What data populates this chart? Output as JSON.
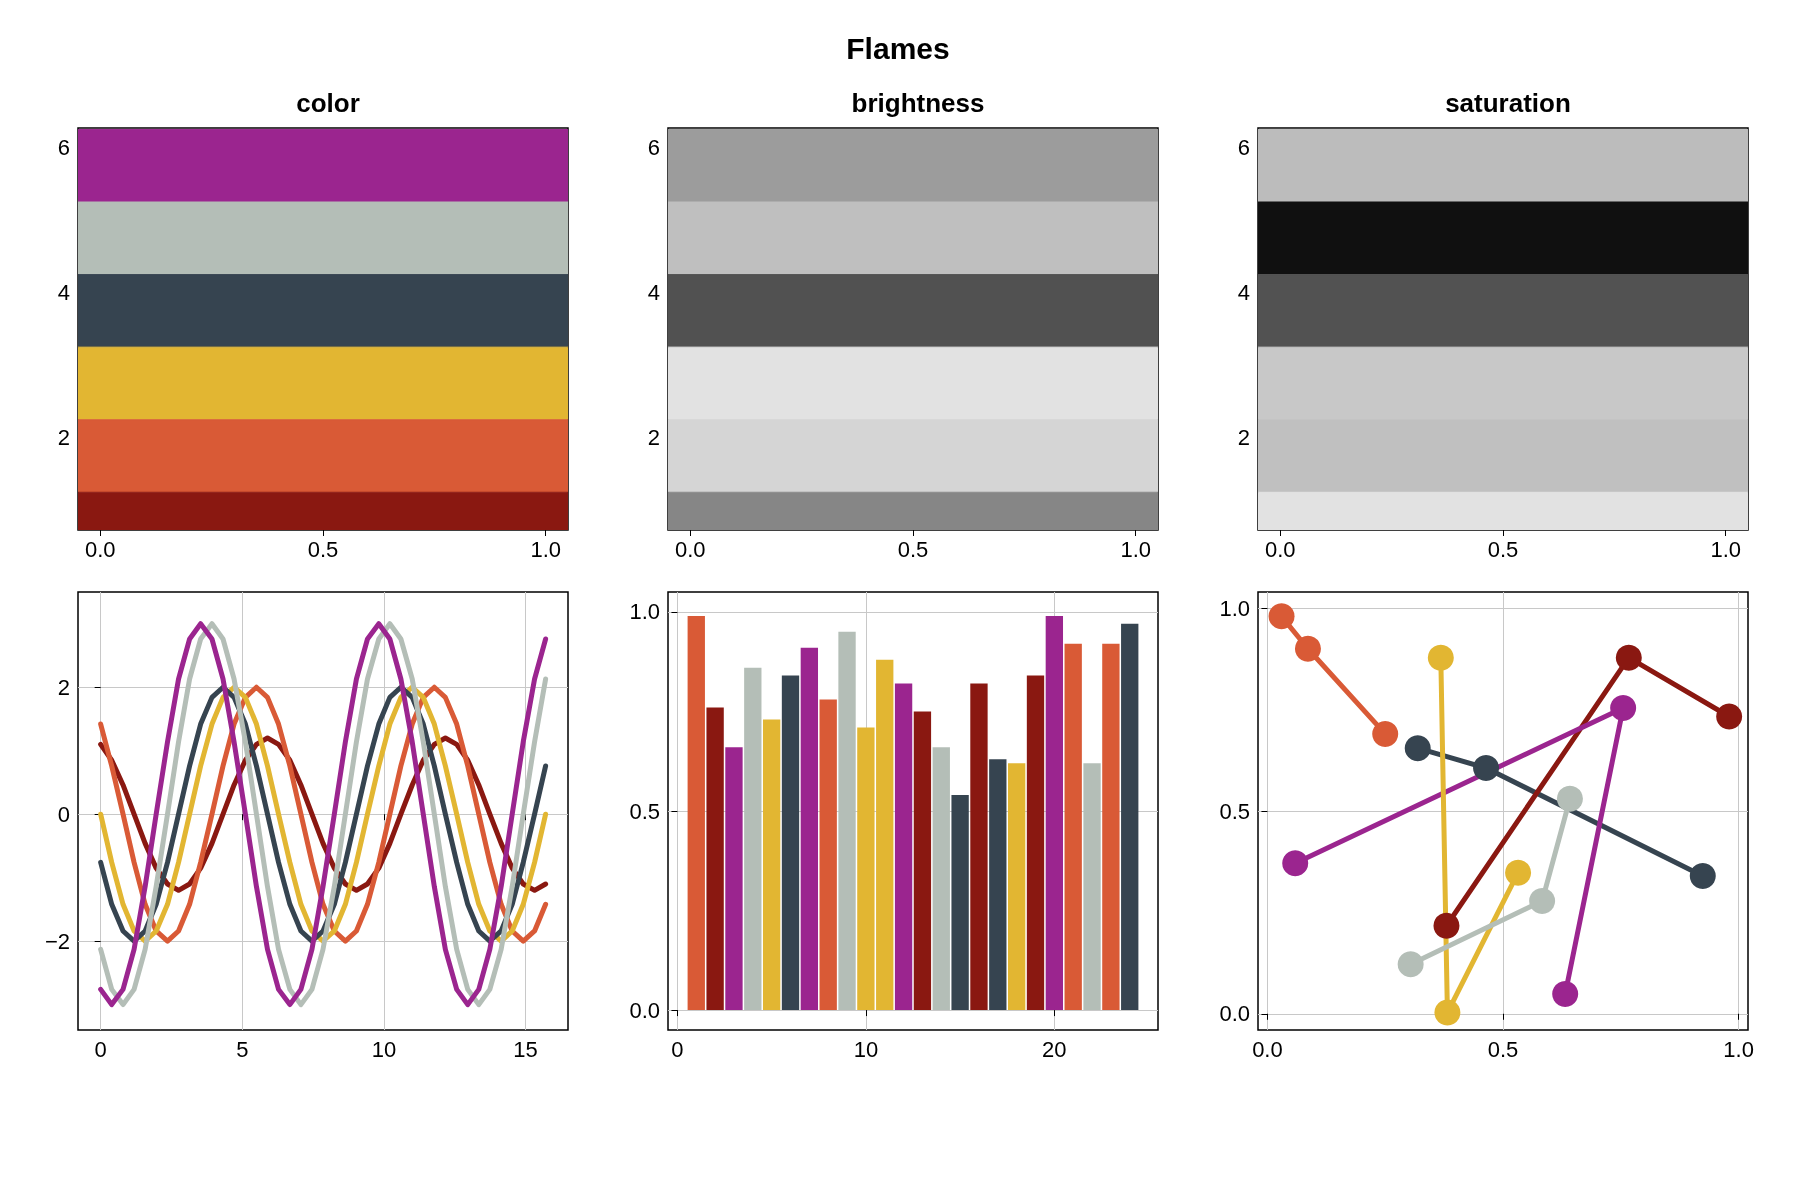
{
  "chart_data": [
    {
      "type": "other",
      "title": "Flames"
    },
    {
      "type": "area",
      "title": "color",
      "stacked": true,
      "x": [
        -0.05,
        1.05
      ],
      "xlim": [
        -0.05,
        1.05
      ],
      "ylim": [
        0.73,
        6.27
      ],
      "xticks": [
        {
          "value": 0,
          "label": "0.0"
        },
        {
          "value": 0.5,
          "label": "0.5"
        },
        {
          "value": 1,
          "label": "1.0"
        }
      ],
      "yticks": [
        2,
        4,
        6
      ],
      "grid": false,
      "series": [
        {
          "color": "#8a1811",
          "values": [
            1.25,
            1.25
          ]
        },
        {
          "color": "#d95a36",
          "values": [
            1,
            1
          ]
        },
        {
          "color": "#e2b632",
          "values": [
            1,
            1
          ]
        },
        {
          "color": "#364450",
          "values": [
            1,
            1
          ]
        },
        {
          "color": "#b4beb7",
          "values": [
            1,
            1
          ]
        },
        {
          "color": "#9b258f",
          "values": [
            1,
            1
          ]
        }
      ]
    },
    {
      "type": "area",
      "title": "brightness",
      "stacked": true,
      "x": [
        -0.05,
        1.05
      ],
      "xlim": [
        -0.05,
        1.05
      ],
      "ylim": [
        0.73,
        6.27
      ],
      "xticks": [
        {
          "value": 0,
          "label": "0.0"
        },
        {
          "value": 0.5,
          "label": "0.5"
        },
        {
          "value": 1,
          "label": "1.0"
        }
      ],
      "yticks": [
        2,
        4,
        6
      ],
      "grid": false,
      "series": [
        {
          "color": "#868686",
          "values": [
            1.25,
            1.25
          ]
        },
        {
          "color": "#d5d5d5",
          "values": [
            1,
            1
          ]
        },
        {
          "color": "#e2e2e2",
          "values": [
            1,
            1
          ]
        },
        {
          "color": "#515151",
          "values": [
            1,
            1
          ]
        },
        {
          "color": "#bfbfbf",
          "values": [
            1,
            1
          ]
        },
        {
          "color": "#9c9c9c",
          "values": [
            1,
            1
          ]
        }
      ]
    },
    {
      "type": "area",
      "title": "saturation",
      "stacked": true,
      "x": [
        -0.05,
        1.05
      ],
      "xlim": [
        -0.05,
        1.05
      ],
      "ylim": [
        0.73,
        6.27
      ],
      "xticks": [
        {
          "value": 0,
          "label": "0.0"
        },
        {
          "value": 0.5,
          "label": "0.5"
        },
        {
          "value": 1,
          "label": "1.0"
        }
      ],
      "yticks": [
        2,
        4,
        6
      ],
      "grid": false,
      "series": [
        {
          "color": "#e2e2e2",
          "values": [
            1.25,
            1.25
          ]
        },
        {
          "color": "#c0c0c0",
          "values": [
            1,
            1
          ]
        },
        {
          "color": "#c8c8c8",
          "values": [
            1,
            1
          ]
        },
        {
          "color": "#525252",
          "values": [
            1,
            1
          ]
        },
        {
          "color": "#101010",
          "values": [
            1,
            1
          ]
        },
        {
          "color": "#bcbcbc",
          "values": [
            1,
            1
          ]
        }
      ]
    },
    {
      "type": "line",
      "grid": true,
      "xlim": [
        -0.8,
        16.5
      ],
      "ylim": [
        -3.4,
        3.5
      ],
      "xticks": [
        0,
        5,
        10,
        15
      ],
      "yticks": [
        {
          "value": -2,
          "label": "−2"
        },
        0,
        2
      ],
      "x": [
        0,
        0.39,
        0.79,
        1.18,
        1.57,
        1.96,
        2.36,
        2.75,
        3.14,
        3.53,
        3.93,
        4.32,
        4.71,
        5.11,
        5.5,
        5.89,
        6.28,
        6.68,
        7.07,
        7.46,
        7.85,
        8.25,
        8.64,
        9.03,
        9.42,
        9.82,
        10.21,
        10.6,
        11,
        11.39,
        11.78,
        12.17,
        12.57,
        12.96,
        13.35,
        13.74,
        14.14,
        14.53,
        14.92,
        15.32,
        15.71
      ],
      "series": [
        {
          "color": "#8a1811",
          "values": [
            1.1,
            0.85,
            0.46,
            0,
            -0.46,
            -0.85,
            -1.1,
            -1.2,
            -1.1,
            -0.85,
            -0.46,
            0,
            0.46,
            0.85,
            1.1,
            1.2,
            1.1,
            0.85,
            0.46,
            0,
            -0.46,
            -0.85,
            -1.1,
            -1.2,
            -1.1,
            -0.85,
            -0.46,
            0,
            0.46,
            0.85,
            1.1,
            1.2,
            1.1,
            0.85,
            0.46,
            0,
            -0.46,
            -0.85,
            -1.1,
            -1.2,
            -1.1
          ]
        },
        {
          "color": "#d95a36",
          "values": [
            1.42,
            0.76,
            0,
            -0.76,
            -1.42,
            -1.84,
            -2,
            -1.84,
            -1.42,
            -0.76,
            0,
            0.76,
            1.42,
            1.84,
            2,
            1.84,
            1.42,
            0.76,
            0,
            -0.76,
            -1.42,
            -1.84,
            -2,
            -1.84,
            -1.42,
            -0.76,
            0,
            0.76,
            1.42,
            1.84,
            2,
            1.84,
            1.42,
            0.76,
            0,
            -0.76,
            -1.42,
            -1.84,
            -2,
            -1.84,
            -1.42
          ]
        },
        {
          "color": "#e2b632",
          "values": [
            0,
            -0.76,
            -1.42,
            -1.84,
            -2,
            -1.84,
            -1.42,
            -0.76,
            0,
            0.76,
            1.42,
            1.84,
            2,
            1.84,
            1.42,
            0.76,
            0,
            -0.76,
            -1.42,
            -1.84,
            -2,
            -1.84,
            -1.42,
            -0.76,
            0,
            0.76,
            1.42,
            1.84,
            2,
            1.84,
            1.42,
            0.76,
            0,
            -0.76,
            -1.42,
            -1.84,
            -2,
            -1.84,
            -1.42,
            -0.76,
            0
          ]
        },
        {
          "color": "#364450",
          "values": [
            -0.76,
            -1.42,
            -1.84,
            -2,
            -1.84,
            -1.42,
            -0.76,
            0,
            0.76,
            1.42,
            1.84,
            2,
            1.84,
            1.42,
            0.76,
            0,
            -0.76,
            -1.42,
            -1.84,
            -2,
            -1.84,
            -1.42,
            -0.76,
            0,
            0.76,
            1.42,
            1.84,
            2,
            1.84,
            1.42,
            0.76,
            0,
            -0.76,
            -1.42,
            -1.84,
            -2,
            -1.84,
            -1.42,
            -0.76,
            0,
            0.76
          ]
        },
        {
          "color": "#b4beb7",
          "values": [
            -2.13,
            -2.76,
            -3,
            -2.76,
            -2.13,
            -1.14,
            0,
            1.14,
            2.13,
            2.76,
            3,
            2.76,
            2.13,
            1.14,
            0,
            -1.14,
            -2.13,
            -2.76,
            -3,
            -2.76,
            -2.13,
            -1.14,
            0,
            1.14,
            2.13,
            2.76,
            3,
            2.76,
            2.13,
            1.14,
            0,
            -1.14,
            -2.13,
            -2.76,
            -3,
            -2.76,
            -2.13,
            -1.14,
            0,
            1.14,
            2.13
          ]
        },
        {
          "color": "#9b258f",
          "values": [
            -2.76,
            -3,
            -2.76,
            -2.13,
            -1.14,
            0,
            1.14,
            2.13,
            2.76,
            3,
            2.76,
            2.13,
            1.14,
            0,
            -1.14,
            -2.13,
            -2.76,
            -3,
            -2.76,
            -2.13,
            -1.14,
            0,
            1.14,
            2.13,
            2.76,
            3,
            2.76,
            2.13,
            1.14,
            0,
            -1.14,
            -2.13,
            -2.76,
            -3,
            -2.76,
            -2.13,
            -1.14,
            0,
            1.14,
            2.13,
            2.76
          ]
        }
      ]
    },
    {
      "type": "bar",
      "grid": true,
      "xlim": [
        -0.5,
        25.5
      ],
      "ylim": [
        -0.05,
        1.05
      ],
      "xticks": [
        0,
        10,
        20
      ],
      "yticks": [
        {
          "value": 0,
          "label": "0.0"
        },
        {
          "value": 0.5,
          "label": "0.5"
        },
        {
          "value": 1,
          "label": "1.0"
        }
      ],
      "x": [
        1,
        2,
        3,
        4,
        5,
        6,
        7,
        8,
        9,
        10,
        11,
        12,
        13,
        14,
        15,
        16,
        17,
        18,
        19,
        20,
        21,
        22,
        23,
        24
      ],
      "values": [
        0.99,
        0.76,
        0.66,
        0.86,
        0.73,
        0.84,
        0.91,
        0.78,
        0.95,
        0.71,
        0.88,
        0.82,
        0.75,
        0.66,
        0.54,
        0.82,
        0.63,
        0.62,
        0.84,
        0.99,
        0.92,
        0.62,
        0.92,
        0.97
      ],
      "colors": [
        "#d95a36",
        "#8a1811",
        "#9b258f",
        "#b4beb7",
        "#e2b632",
        "#364450",
        "#9b258f",
        "#d95a36",
        "#b4beb7",
        "#e2b632",
        "#e2b632",
        "#9b258f",
        "#8a1811",
        "#b4beb7",
        "#364450",
        "#8a1811",
        "#364450",
        "#e2b632",
        "#8a1811",
        "#9b258f",
        "#d95a36",
        "#b4beb7",
        "#d95a36",
        "#364450"
      ]
    },
    {
      "type": "line",
      "marker": "circle",
      "grid": true,
      "xlim": [
        -0.02,
        1.02
      ],
      "ylim": [
        -0.04,
        1.04
      ],
      "xticks": [
        {
          "value": 0,
          "label": "0.0"
        },
        {
          "value": 0.5,
          "label": "0.5"
        },
        {
          "value": 1,
          "label": "1.0"
        }
      ],
      "yticks": [
        {
          "value": 0,
          "label": "0.0"
        },
        {
          "value": 0.5,
          "label": "0.5"
        },
        {
          "value": 1,
          "label": "1.0"
        }
      ],
      "series": [
        {
          "color": "#d95a36",
          "x": [
            0.03,
            0.086,
            0.25
          ],
          "values": [
            0.98,
            0.9,
            0.69
          ]
        },
        {
          "color": "#364450",
          "x": [
            0.319,
            0.464,
            0.924
          ],
          "values": [
            0.655,
            0.606,
            0.34
          ]
        },
        {
          "color": "#8a1811",
          "x": [
            0.38,
            0.767,
            0.98
          ],
          "values": [
            0.217,
            0.878,
            0.733
          ]
        },
        {
          "color": "#9b258f",
          "x": [
            0.059,
            0.755,
            0.632
          ],
          "values": [
            0.371,
            0.754,
            0.049
          ]
        },
        {
          "color": "#e2b632",
          "x": [
            0.368,
            0.382,
            0.532
          ],
          "values": [
            0.878,
            0.003,
            0.348
          ]
        },
        {
          "color": "#b4beb7",
          "x": [
            0.304,
            0.583,
            0.642
          ],
          "values": [
            0.122,
            0.278,
            0.53
          ]
        }
      ]
    }
  ]
}
